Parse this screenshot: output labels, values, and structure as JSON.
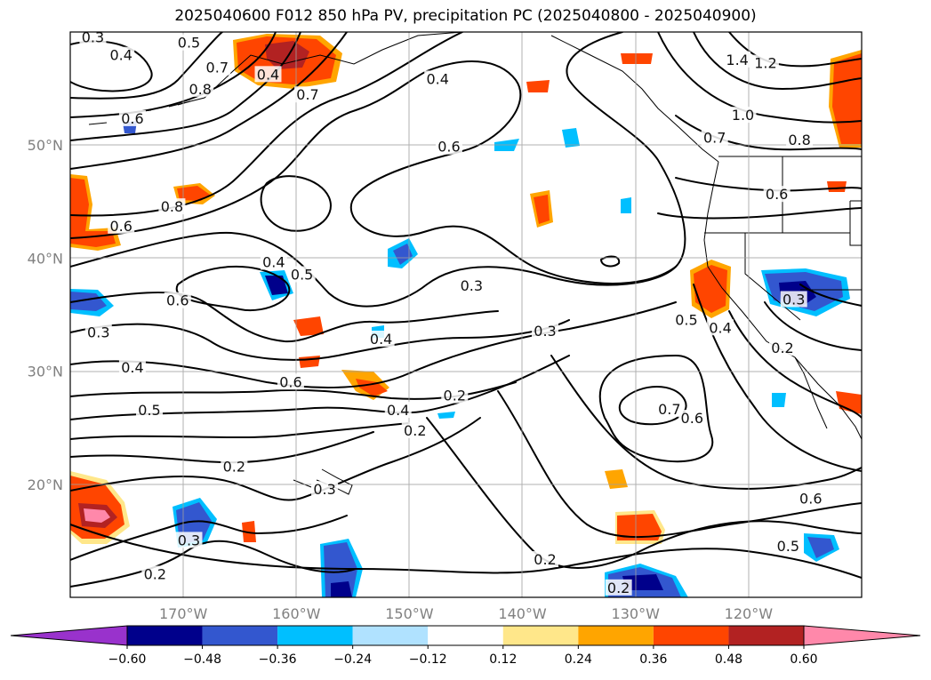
{
  "title": "2025040600 F012 850 hPa PV, precipitation PC (2025040800 - 2025040900)",
  "map": {
    "type": "map",
    "lon_range": [
      -180,
      -110
    ],
    "lat_range": [
      10,
      60
    ],
    "lat_labels": [
      {
        "value": 20,
        "label": "20°N"
      },
      {
        "value": 30,
        "label": "30°N"
      },
      {
        "value": 40,
        "label": "40°N"
      },
      {
        "value": 50,
        "label": "50°N"
      }
    ],
    "lon_labels": [
      {
        "value": -170,
        "label": "170°W"
      },
      {
        "value": -160,
        "label": "160°W"
      },
      {
        "value": -150,
        "label": "150°W"
      },
      {
        "value": -140,
        "label": "140°W"
      },
      {
        "value": -130,
        "label": "130°W"
      },
      {
        "value": -120,
        "label": "120°W"
      }
    ],
    "grid": true,
    "contour_labels": [
      {
        "lon": -178.0,
        "lat": 59.5,
        "text": "0.3"
      },
      {
        "lon": -175.5,
        "lat": 57.9,
        "text": "0.4"
      },
      {
        "lon": -169.5,
        "lat": 59.0,
        "text": "0.5"
      },
      {
        "lon": -167.0,
        "lat": 56.8,
        "text": "0.7"
      },
      {
        "lon": -168.5,
        "lat": 54.9,
        "text": "0.8"
      },
      {
        "lon": -174.5,
        "lat": 52.3,
        "text": "0.6"
      },
      {
        "lon": -162.5,
        "lat": 56.2,
        "text": "0.4"
      },
      {
        "lon": -159.0,
        "lat": 54.4,
        "text": "0.7"
      },
      {
        "lon": -147.5,
        "lat": 55.8,
        "text": "0.4"
      },
      {
        "lon": -121.0,
        "lat": 57.5,
        "text": "1.4"
      },
      {
        "lon": -118.5,
        "lat": 57.2,
        "text": "1.2"
      },
      {
        "lon": -120.5,
        "lat": 52.6,
        "text": "1.0"
      },
      {
        "lon": -115.5,
        "lat": 50.4,
        "text": "0.8"
      },
      {
        "lon": -123.0,
        "lat": 50.6,
        "text": "0.7"
      },
      {
        "lon": -146.5,
        "lat": 49.8,
        "text": "0.6"
      },
      {
        "lon": -171.0,
        "lat": 44.5,
        "text": "0.8"
      },
      {
        "lon": -175.5,
        "lat": 42.8,
        "text": "0.6"
      },
      {
        "lon": -117.5,
        "lat": 45.6,
        "text": "0.6"
      },
      {
        "lon": -162.0,
        "lat": 39.6,
        "text": "0.4"
      },
      {
        "lon": -159.5,
        "lat": 38.5,
        "text": "0.5"
      },
      {
        "lon": -170.5,
        "lat": 36.2,
        "text": "0.6"
      },
      {
        "lon": -177.5,
        "lat": 33.4,
        "text": "0.3"
      },
      {
        "lon": -174.5,
        "lat": 30.3,
        "text": "0.4"
      },
      {
        "lon": -173.0,
        "lat": 26.5,
        "text": "0.5"
      },
      {
        "lon": -160.5,
        "lat": 29.0,
        "text": "0.6"
      },
      {
        "lon": -152.5,
        "lat": 32.8,
        "text": "0.4"
      },
      {
        "lon": -144.5,
        "lat": 37.5,
        "text": "0.3"
      },
      {
        "lon": -138.0,
        "lat": 33.5,
        "text": "0.3"
      },
      {
        "lon": -151.0,
        "lat": 26.5,
        "text": "0.4"
      },
      {
        "lon": -146.0,
        "lat": 27.8,
        "text": "0.2"
      },
      {
        "lon": -149.5,
        "lat": 24.7,
        "text": "0.2"
      },
      {
        "lon": -165.5,
        "lat": 21.5,
        "text": "0.2"
      },
      {
        "lon": -157.5,
        "lat": 19.5,
        "text": "0.3"
      },
      {
        "lon": -169.5,
        "lat": 15.0,
        "text": "0.3"
      },
      {
        "lon": -172.5,
        "lat": 12.0,
        "text": "0.2"
      },
      {
        "lon": -138.0,
        "lat": 13.3,
        "text": "0.2"
      },
      {
        "lon": -131.5,
        "lat": 10.8,
        "text": "0.2"
      },
      {
        "lon": -125.5,
        "lat": 34.5,
        "text": "0.5"
      },
      {
        "lon": -122.5,
        "lat": 33.8,
        "text": "0.4"
      },
      {
        "lon": -127.0,
        "lat": 26.6,
        "text": "0.7"
      },
      {
        "lon": -125.0,
        "lat": 25.8,
        "text": "0.6"
      },
      {
        "lon": -116.0,
        "lat": 36.3,
        "text": "0.3"
      },
      {
        "lon": -117.0,
        "lat": 32.0,
        "text": "0.2"
      },
      {
        "lon": -114.5,
        "lat": 18.7,
        "text": "0.6"
      },
      {
        "lon": -116.5,
        "lat": 14.5,
        "text": "0.5"
      }
    ]
  },
  "colorbar": {
    "levels": [
      -0.6,
      -0.48,
      -0.36,
      -0.24,
      -0.12,
      0.12,
      0.24,
      0.36,
      0.48,
      0.6
    ],
    "tick_labels": [
      "−0.60",
      "−0.48",
      "−0.36",
      "−0.24",
      "−0.12",
      "0.12",
      "0.24",
      "0.36",
      "0.48",
      "0.60"
    ],
    "colors": [
      "#9932cc",
      "#00008b",
      "#3357cf",
      "#00bfff",
      "#b0e2ff",
      "#ffffff",
      "#ffe78a",
      "#ffa500",
      "#ff4500",
      "#b22222",
      "#ff88aa"
    ],
    "extend": "both"
  }
}
